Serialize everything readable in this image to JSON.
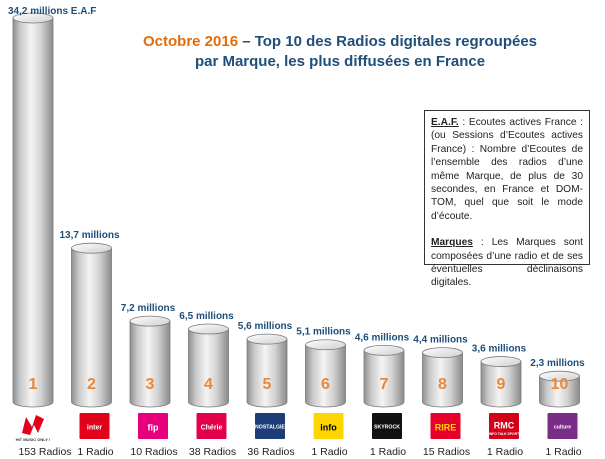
{
  "title": {
    "month": "Octobre 2016",
    "rest_line1": " – Top 10 des Radios digitales regroupées",
    "line2": "par Marque, les plus diffusées en France"
  },
  "note": {
    "eaf_term": "E.A.F.",
    "eaf_text": " : Ecoutes actives France : (ou Sessions d’Ecoutes actives France) : Nombre d’Ecoutes de l’ensemble des radios d’une même Marque, de plus de 30 secondes, en France et DOM-TOM, quel que soit le mode d’écoute.",
    "marques_term": "Marques",
    "marques_text": " : Les Marques sont composées d’une radio et de ses éventuelles déclinaisons digitales."
  },
  "colors": {
    "title_blue": "#1f4e79",
    "month_orange": "#e36c09",
    "rank_orange": "#e8883a",
    "cylinder_gray": "#b8b8b8"
  },
  "chart_data": {
    "type": "bar",
    "title": "Octobre 2016 – Top 10 des Radios digitales regroupées par Marque, les plus diffusées en France",
    "unit": "millions E.A.F",
    "ylim": [
      0,
      34.2
    ],
    "series": [
      {
        "values": [
          34.2,
          13.7,
          7.2,
          6.5,
          5.6,
          5.1,
          4.6,
          4.4,
          3.6,
          2.3
        ]
      }
    ],
    "value_labels": [
      "34,2 millions E.A.F",
      "13,7 millions",
      "7,2 millions",
      "6,5 millions",
      "5,6 millions",
      "5,1 millions",
      "4,6 millions",
      "4,4 millions",
      "3,6 millions",
      "2,3 millions"
    ],
    "ranks": [
      "1",
      "2",
      "3",
      "4",
      "5",
      "6",
      "7",
      "8",
      "9",
      "10"
    ],
    "brands": [
      "NRJ",
      "France Inter",
      "FIP",
      "Chérie",
      "Nostalgie",
      "France Info",
      "Skyrock",
      "Rire & Chansons",
      "RMC",
      "France Culture"
    ],
    "radio_counts": [
      "153 Radios",
      "1 Radio",
      "10 Radios",
      "38 Radios",
      "36 Radios",
      "1 Radio",
      "1 Radio",
      "15 Radios",
      "1 Radio",
      "1 Radio"
    ]
  },
  "logos": [
    {
      "text": "",
      "sub": "HIT MUSIC ONLY !",
      "bg": "#ffffff",
      "fg": "#e2001a",
      "icon": "nrj-logo"
    },
    {
      "text": "inter",
      "sub": "",
      "bg": "#e2001a",
      "fg": "#ffffff",
      "icon": "france-inter-logo"
    },
    {
      "text": "fip",
      "sub": "",
      "bg": "#e6007e",
      "fg": "#ffffff",
      "icon": "fip-logo"
    },
    {
      "text": "Chérie",
      "sub": "",
      "bg": "#e2004a",
      "fg": "#ffffff",
      "icon": "cherie-logo"
    },
    {
      "text": "NOSTALGIE",
      "sub": "",
      "bg": "#1d3c78",
      "fg": "#ffffff",
      "icon": "nostalgie-logo"
    },
    {
      "text": "info",
      "sub": "",
      "bg": "#ffd500",
      "fg": "#000000",
      "icon": "france-info-logo"
    },
    {
      "text": "SKYROCK",
      "sub": "",
      "bg": "#111111",
      "fg": "#ffffff",
      "icon": "skyrock-logo"
    },
    {
      "text": "RIRE",
      "sub": "",
      "bg": "#e4002b",
      "fg": "#ffd400",
      "icon": "rire-chansons-logo"
    },
    {
      "text": "RMC",
      "sub": "INFO TALK SPORT",
      "bg": "#d4001a",
      "fg": "#ffffff",
      "icon": "rmc-logo"
    },
    {
      "text": "culture",
      "sub": "",
      "bg": "#7a2d87",
      "fg": "#ffffff",
      "icon": "france-culture-logo"
    }
  ]
}
